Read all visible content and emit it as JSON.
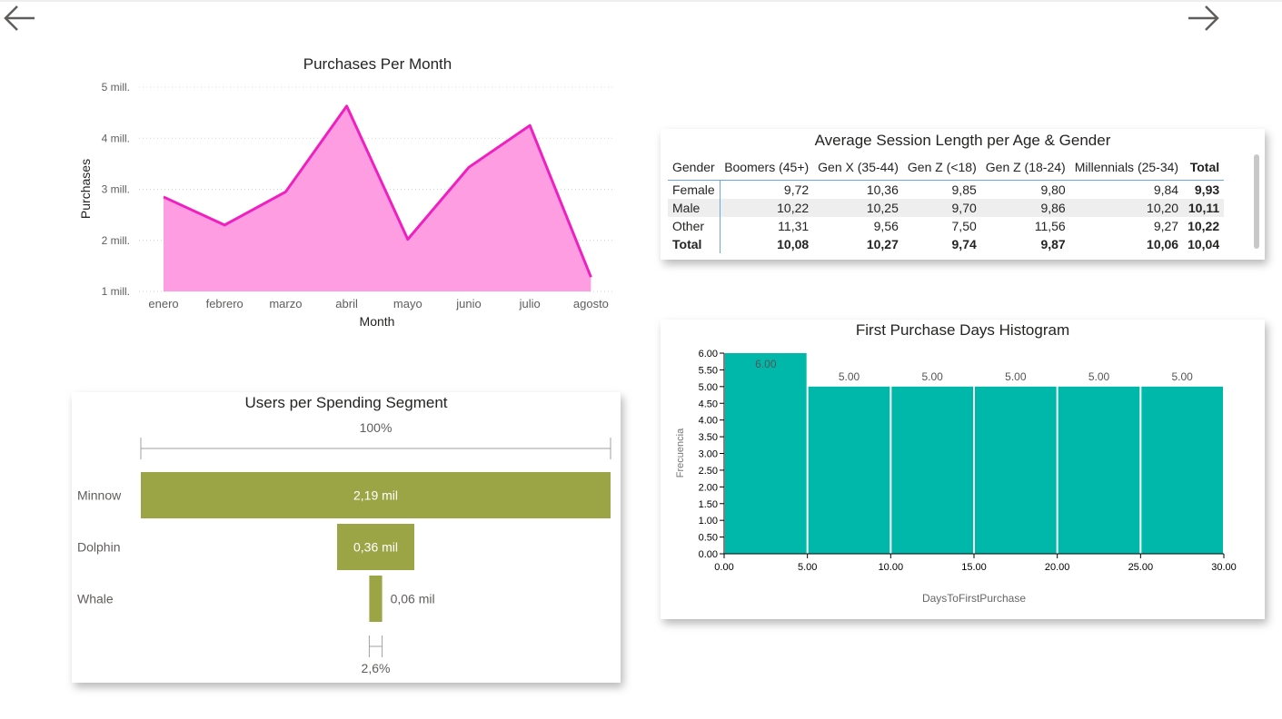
{
  "nav": {
    "back_icon": "arrow-left-icon",
    "forward_icon": "arrow-right-icon"
  },
  "purchases_chart": {
    "title": "Purchases Per Month",
    "xlabel": "Month",
    "ylabel": "Purchases",
    "y_ticks": [
      "1 mill.",
      "2 mill.",
      "3 mill.",
      "4 mill.",
      "5 mill."
    ],
    "color_line": "#f020c0",
    "color_fill": "#ff9de2"
  },
  "session_table": {
    "title": "Average Session Length per Age & Gender",
    "columns": [
      "Gender",
      "Boomers (45+)",
      "Gen X (35-44)",
      "Gen Z (<18)",
      "Gen Z (18-24)",
      "Millennials (25-34)",
      "Total"
    ],
    "rows": [
      [
        "Female",
        "9,72",
        "10,36",
        "9,85",
        "9,80",
        "9,84",
        "9,93"
      ],
      [
        "Male",
        "10,22",
        "10,25",
        "9,70",
        "9,86",
        "10,20",
        "10,11"
      ],
      [
        "Other",
        "11,31",
        "9,56",
        "7,50",
        "11,56",
        "9,27",
        "10,22"
      ],
      [
        "Total",
        "10,08",
        "10,27",
        "9,74",
        "9,87",
        "10,06",
        "10,04"
      ]
    ]
  },
  "funnel": {
    "title": "Users per Spending Segment",
    "top_label": "100%",
    "bottom_label": "2,6%",
    "color": "#9ca546"
  },
  "histogram": {
    "title": "First Purchase Days Histogram",
    "xlabel": "DaysToFirstPurchase",
    "ylabel": "Frecuencia",
    "x_ticks": [
      "0.00",
      "5.00",
      "10.00",
      "15.00",
      "20.00",
      "25.00",
      "30.00"
    ],
    "y_ticks": [
      "0.00",
      "0.50",
      "1.00",
      "1.50",
      "2.00",
      "2.50",
      "3.00",
      "3.50",
      "4.00",
      "4.50",
      "5.00",
      "5.50",
      "6.00"
    ],
    "color": "#00b8aa"
  },
  "chart_data": [
    {
      "type": "area",
      "title": "Purchases Per Month",
      "xlabel": "Month",
      "ylabel": "Purchases",
      "categories": [
        "enero",
        "febrero",
        "marzo",
        "abril",
        "mayo",
        "junio",
        "julio",
        "agosto"
      ],
      "values": [
        2850000,
        2300000,
        2950000,
        4630000,
        2020000,
        3430000,
        4250000,
        1280000
      ],
      "ylim": [
        1000000,
        5000000
      ],
      "grid": true
    },
    {
      "type": "bar",
      "orientation": "funnel",
      "title": "Users per Spending Segment",
      "categories": [
        "Minnow",
        "Dolphin",
        "Whale"
      ],
      "values": [
        2190,
        360,
        60
      ],
      "labels": [
        "2,19 mil",
        "0,36 mil",
        "0,06 mil"
      ]
    },
    {
      "type": "bar",
      "title": "First Purchase Days Histogram",
      "xlabel": "DaysToFirstPurchase",
      "ylabel": "Frecuencia",
      "bins": [
        [
          0,
          5
        ],
        [
          5,
          10
        ],
        [
          10,
          15
        ],
        [
          15,
          20
        ],
        [
          20,
          25
        ],
        [
          25,
          30
        ]
      ],
      "values": [
        6,
        5,
        5,
        5,
        5,
        5
      ],
      "labels": [
        "6.00",
        "5.00",
        "5.00",
        "5.00",
        "5.00",
        "5.00"
      ],
      "xlim": [
        0,
        30
      ],
      "ylim": [
        0,
        6
      ]
    }
  ]
}
